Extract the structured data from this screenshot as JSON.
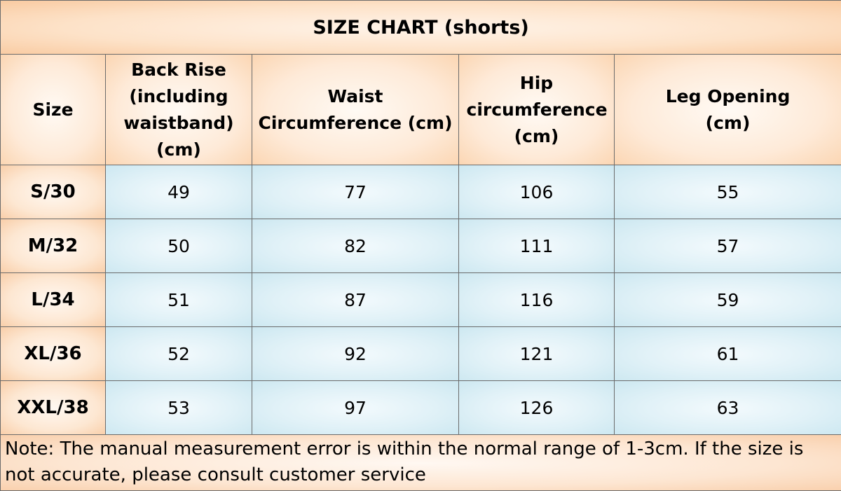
{
  "title": "SIZE CHART  (shorts)",
  "columns": [
    "Size",
    "Back Rise (including waistband) (cm)",
    "Waist Circumference (cm)",
    "Hip circumference (cm)",
    "Leg Opening (cm)"
  ],
  "rows": [
    {
      "size": "S/30",
      "back_rise": "49",
      "waist": "77",
      "hip": "106",
      "leg_opening": "55"
    },
    {
      "size": "M/32",
      "back_rise": "50",
      "waist": "82",
      "hip": "111",
      "leg_opening": "57"
    },
    {
      "size": "L/34",
      "back_rise": "51",
      "waist": "87",
      "hip": "116",
      "leg_opening": "59"
    },
    {
      "size": "XL/36",
      "back_rise": "52",
      "waist": "92",
      "hip": "121",
      "leg_opening": "61"
    },
    {
      "size": "XXL/38",
      "back_rise": "53",
      "waist": "97",
      "hip": "126",
      "leg_opening": "63"
    }
  ],
  "note": "Note: The manual measurement error is within the normal range of 1-3cm. If the size is not accurate, please consult customer service",
  "colors": {
    "header_bg": "#fde2c8",
    "value_bg": "#e0f1f7",
    "border": "#6b6b6b"
  }
}
